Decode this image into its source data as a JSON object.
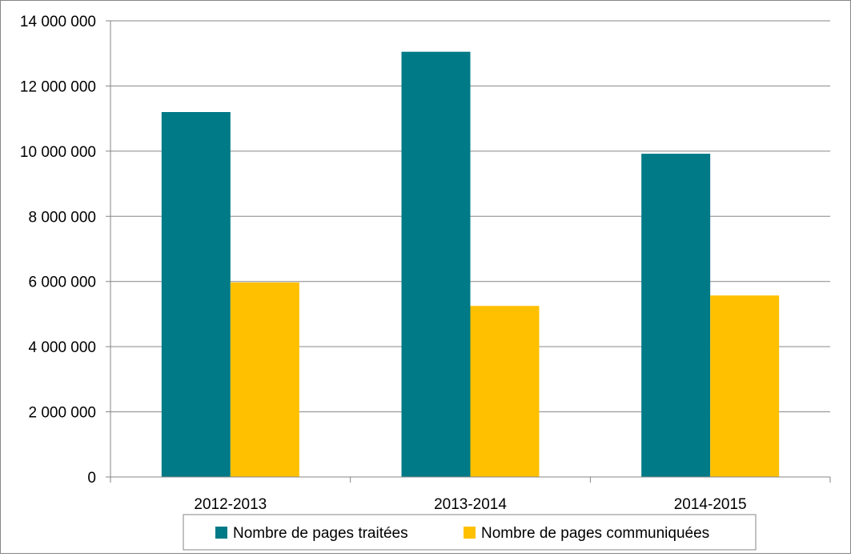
{
  "chart_data": {
    "type": "bar",
    "categories": [
      "2012-2013",
      "2013-2014",
      "2014-2015"
    ],
    "series": [
      {
        "name": "Nombre de pages traitées",
        "values": [
          11200000,
          13050000,
          9920000
        ],
        "color": "#007A87"
      },
      {
        "name": "Nombre de pages communiquées",
        "values": [
          5970000,
          5250000,
          5570000
        ],
        "color": "#FFC000"
      }
    ],
    "ylim": [
      0,
      14000000
    ],
    "yticks": [
      0,
      2000000,
      4000000,
      6000000,
      8000000,
      10000000,
      12000000,
      14000000
    ],
    "ytick_labels": [
      "0",
      "2 000 000",
      "4 000 000",
      "6 000 000",
      "8 000 000",
      "10 000 000",
      "12 000 000",
      "14 000 000"
    ],
    "grid": true,
    "legend_position": "bottom",
    "title": "",
    "xlabel": "",
    "ylabel": ""
  }
}
